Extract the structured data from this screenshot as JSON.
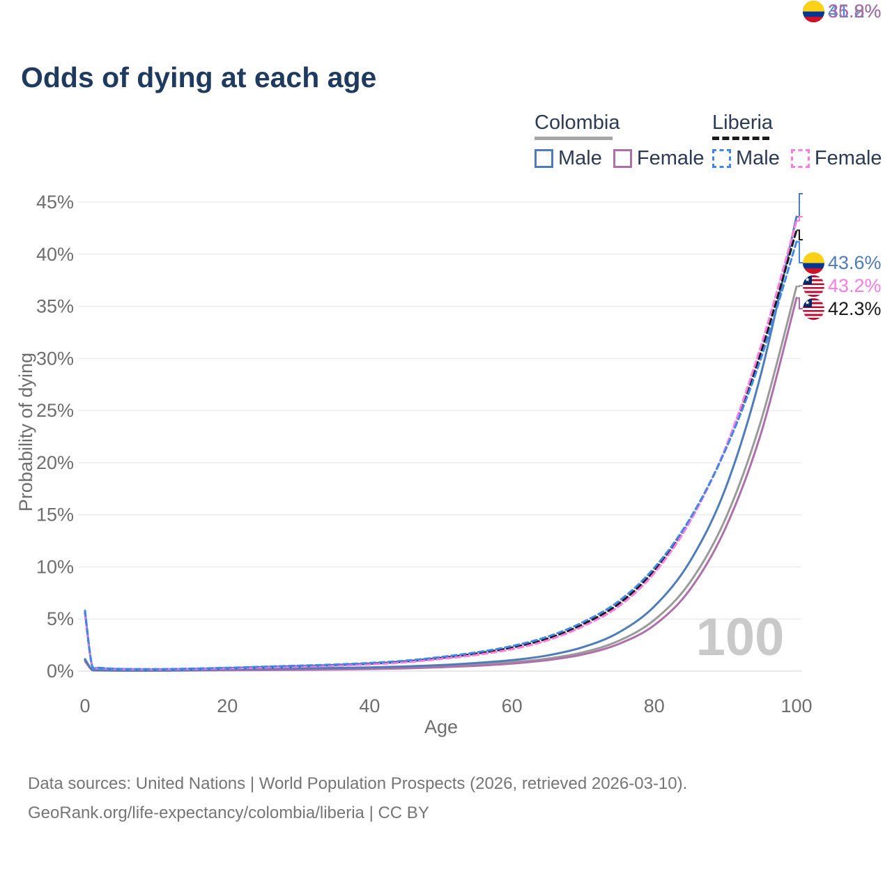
{
  "title": "Odds of dying at each age",
  "watermark": "100",
  "legend": {
    "groups": [
      {
        "label": "Colombia",
        "line_style": "solid",
        "line_color": "#a6a6a6",
        "items": [
          {
            "label": "Male",
            "color": "#4e7cb8",
            "style": "solid"
          },
          {
            "label": "Female",
            "color": "#ae6fab",
            "style": "solid"
          }
        ]
      },
      {
        "label": "Liberia",
        "line_style": "dashed",
        "line_color": "#1a1a1a",
        "items": [
          {
            "label": "Male",
            "color": "#4287e8",
            "style": "dashed"
          },
          {
            "label": "Female",
            "color": "#fb7ce4",
            "style": "dashed"
          }
        ]
      }
    ]
  },
  "end_labels": [
    {
      "value": "43.6%",
      "flag": "colombia",
      "color": "#4e7cb8",
      "series": "Colombia Male"
    },
    {
      "value": "43.2%",
      "flag": "liberia",
      "color": "#fb7ce4",
      "series": "Liberia Female"
    },
    {
      "value": "42.3%",
      "flag": "liberia",
      "color": "#1a1a1a",
      "series": "Liberia Both"
    },
    {
      "value": "41.2%",
      "flag": "liberia",
      "color": "#4287e8",
      "series": "Liberia Male"
    },
    {
      "value": "36.9%",
      "flag": "colombia",
      "color": "#9a9a9a",
      "series": "Colombia Both"
    },
    {
      "value": "35.8%",
      "flag": "colombia",
      "color": "#a76ba9",
      "series": "Colombia Female"
    }
  ],
  "footer": {
    "line1": "Data sources: United Nations | World Population Prospects (2026, retrieved 2026-03-10).",
    "line2": "GeoRank.org/life-expectancy/colombia/liberia | CC BY"
  },
  "chart_data": {
    "type": "line",
    "title": "Odds of dying at each age",
    "xlabel": "Age",
    "ylabel": "Probability of dying",
    "xlim": [
      0,
      100
    ],
    "ylim": [
      0,
      45
    ],
    "grid": "horizontal",
    "legend_position": "top-right",
    "x_ticks": [
      0,
      20,
      40,
      60,
      80,
      100
    ],
    "y_ticks": [
      "0%",
      "5%",
      "10%",
      "15%",
      "20%",
      "25%",
      "30%",
      "35%",
      "40%",
      "45%"
    ],
    "x": [
      0,
      1,
      2,
      5,
      10,
      15,
      20,
      25,
      30,
      35,
      40,
      45,
      50,
      55,
      60,
      65,
      70,
      75,
      80,
      85,
      90,
      95,
      100
    ],
    "series": [
      {
        "id": "colombia-both",
        "name": "Colombia",
        "country": "Colombia",
        "sex": "Both",
        "style": "solid",
        "color": "#9a9a9a",
        "end_value_pct": 36.9,
        "values": [
          1.05,
          0.11,
          0.07,
          0.05,
          0.04,
          0.08,
          0.13,
          0.17,
          0.19,
          0.22,
          0.26,
          0.34,
          0.46,
          0.62,
          0.85,
          1.2,
          1.8,
          2.9,
          4.9,
          8.5,
          14.6,
          24.0,
          36.9
        ]
      },
      {
        "id": "colombia-female",
        "name": "Colombia Female",
        "country": "Colombia",
        "sex": "Female",
        "style": "solid",
        "color": "#ae6fab",
        "end_value_pct": 35.8,
        "values": [
          0.95,
          0.1,
          0.06,
          0.04,
          0.035,
          0.06,
          0.08,
          0.1,
          0.12,
          0.15,
          0.19,
          0.26,
          0.37,
          0.51,
          0.72,
          1.05,
          1.6,
          2.6,
          4.4,
          7.8,
          13.7,
          22.8,
          35.8
        ]
      },
      {
        "id": "colombia-male",
        "name": "Colombia Male",
        "country": "Colombia",
        "sex": "Male",
        "style": "solid",
        "color": "#4e7cb8",
        "end_value_pct": 43.6,
        "values": [
          1.15,
          0.12,
          0.08,
          0.05,
          0.05,
          0.1,
          0.19,
          0.24,
          0.27,
          0.3,
          0.35,
          0.44,
          0.58,
          0.78,
          1.05,
          1.5,
          2.3,
          3.7,
          6.2,
          10.5,
          17.5,
          28.5,
          43.6
        ]
      },
      {
        "id": "liberia-both",
        "name": "Liberia",
        "country": "Liberia",
        "sex": "Both",
        "style": "dashed",
        "color": "#1a1a1a",
        "end_value_pct": 42.3,
        "values": [
          5.6,
          0.47,
          0.3,
          0.2,
          0.17,
          0.22,
          0.29,
          0.38,
          0.47,
          0.57,
          0.71,
          0.92,
          1.26,
          1.68,
          2.26,
          3.12,
          4.5,
          6.45,
          9.65,
          14.45,
          21.3,
          30.6,
          42.3
        ]
      },
      {
        "id": "liberia-female",
        "name": "Liberia Female",
        "country": "Liberia",
        "sex": "Female",
        "style": "dashed",
        "color": "#fb7ce4",
        "end_value_pct": 43.2,
        "values": [
          5.4,
          0.44,
          0.28,
          0.18,
          0.16,
          0.2,
          0.26,
          0.34,
          0.42,
          0.51,
          0.64,
          0.84,
          1.16,
          1.55,
          2.1,
          2.95,
          4.3,
          6.2,
          9.4,
          14.3,
          21.4,
          31.2,
          43.2
        ]
      },
      {
        "id": "liberia-male",
        "name": "Liberia Male",
        "country": "Liberia",
        "sex": "Male",
        "style": "dashed",
        "color": "#4287e8",
        "end_value_pct": 41.2,
        "values": [
          5.8,
          0.5,
          0.32,
          0.21,
          0.19,
          0.24,
          0.32,
          0.42,
          0.52,
          0.63,
          0.78,
          1.0,
          1.35,
          1.8,
          2.4,
          3.3,
          4.7,
          6.7,
          9.9,
          14.6,
          21.2,
          30.0,
          41.2
        ]
      }
    ]
  }
}
